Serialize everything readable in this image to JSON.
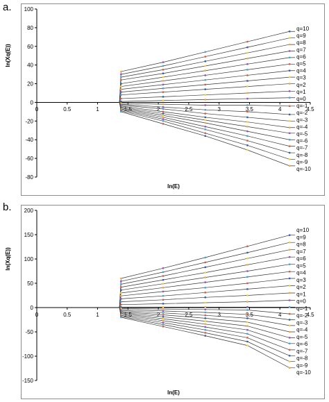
{
  "chart_data": [
    {
      "type": "line",
      "panel_label": "a.",
      "xlabel": "ln(E)",
      "ylabel": "ln(Xq(E))",
      "xlim": [
        0,
        4.5
      ],
      "ylim": [
        -80,
        100
      ],
      "xticks": [
        "0",
        "0.5",
        "1",
        "1.5",
        "2",
        "2.5",
        "3",
        "3.5",
        "4",
        "4.5"
      ],
      "yticks": [
        "100",
        "80",
        "60",
        "40",
        "20",
        "0",
        "-20",
        "-40",
        "-60",
        "-80"
      ],
      "x": [
        1.386,
        2.079,
        2.773,
        3.466,
        4.159
      ],
      "series": [
        {
          "name": "q=10",
          "values": [
            33,
            43,
            54,
            65,
            76
          ]
        },
        {
          "name": "q=9",
          "values": [
            30,
            39,
            49,
            59,
            69
          ]
        },
        {
          "name": "q=8",
          "values": [
            27,
            35,
            44,
            53,
            62
          ]
        },
        {
          "name": "q=7",
          "values": [
            24,
            31,
            39,
            47,
            55
          ]
        },
        {
          "name": "q=6",
          "values": [
            20,
            27,
            34,
            41,
            48
          ]
        },
        {
          "name": "q=5",
          "values": [
            17,
            23,
            29,
            35,
            41
          ]
        },
        {
          "name": "q=4",
          "values": [
            14,
            19,
            24,
            29,
            34
          ]
        },
        {
          "name": "q=3",
          "values": [
            11,
            15,
            19,
            23,
            27
          ]
        },
        {
          "name": "q=2",
          "values": [
            8,
            11,
            14,
            17,
            20
          ]
        },
        {
          "name": "q=1",
          "values": [
            4,
            6,
            8,
            10,
            12
          ]
        },
        {
          "name": "q=0",
          "values": [
            1,
            2,
            3,
            4,
            5
          ]
        },
        {
          "name": "q=-1",
          "values": [
            -1,
            -2,
            -3,
            -3,
            -4
          ]
        },
        {
          "name": "q=-2",
          "values": [
            -2,
            -5,
            -8,
            -10,
            -13
          ]
        },
        {
          "name": "q=-3",
          "values": [
            -3,
            -7,
            -12,
            -16,
            -20
          ]
        },
        {
          "name": "q=-4",
          "values": [
            -4,
            -10,
            -16,
            -21,
            -27
          ]
        },
        {
          "name": "q=-5",
          "values": [
            -5,
            -12,
            -19,
            -26,
            -33
          ]
        },
        {
          "name": "q=-6",
          "values": [
            -6,
            -14,
            -22,
            -31,
            -40
          ]
        },
        {
          "name": "q=-7",
          "values": [
            -7,
            -16,
            -26,
            -36,
            -47
          ]
        },
        {
          "name": "q=-8",
          "values": [
            -8,
            -18,
            -29,
            -41,
            -54
          ]
        },
        {
          "name": "q=-9",
          "values": [
            -9,
            -20,
            -33,
            -46,
            -61
          ]
        },
        {
          "name": "q=-10",
          "values": [
            -10,
            -23,
            -36,
            -51,
            -68
          ]
        }
      ],
      "marker_colors": [
        "#f2a93b",
        "#9b4fc2",
        "#3fa7d6",
        "#e0593b",
        "#2f5fb0",
        "#f2d23b"
      ]
    },
    {
      "type": "line",
      "panel_label": "b.",
      "xlabel": "ln(E)",
      "ylabel": "ln(Xq(E))",
      "xlim": [
        0,
        4.5
      ],
      "ylim": [
        -150,
        200
      ],
      "xticks": [
        "0",
        "0.5",
        "1",
        "1.5",
        "2",
        "2.5",
        "3",
        "3.5",
        "4",
        "4.5"
      ],
      "yticks": [
        "200",
        "150",
        "100",
        "50",
        "0",
        "-50",
        "-100",
        "-150"
      ],
      "x": [
        1.386,
        2.079,
        2.773,
        3.466,
        4.159
      ],
      "series": [
        {
          "name": "q=10",
          "values": [
            60,
            81,
            103,
            126,
            149
          ]
        },
        {
          "name": "q=9",
          "values": [
            54,
            73,
            93,
            113,
            134
          ]
        },
        {
          "name": "q=8",
          "values": [
            48,
            65,
            83,
            101,
            119
          ]
        },
        {
          "name": "q=7",
          "values": [
            42,
            57,
            72,
            88,
            104
          ]
        },
        {
          "name": "q=6",
          "values": [
            36,
            49,
            62,
            75,
            89
          ]
        },
        {
          "name": "q=5",
          "values": [
            30,
            41,
            52,
            63,
            74
          ]
        },
        {
          "name": "q=4",
          "values": [
            24,
            33,
            41,
            50,
            60
          ]
        },
        {
          "name": "q=3",
          "values": [
            18,
            24,
            31,
            38,
            45
          ]
        },
        {
          "name": "q=2",
          "values": [
            12,
            16,
            21,
            25,
            30
          ]
        },
        {
          "name": "q=1",
          "values": [
            6,
            8,
            10,
            12,
            15
          ]
        },
        {
          "name": "q=0",
          "values": [
            1,
            1,
            1,
            1,
            1
          ]
        },
        {
          "name": "q=-1",
          "values": [
            -2,
            -3,
            -4,
            -5,
            -13
          ]
        },
        {
          "name": "q=-2",
          "values": [
            -4,
            -7,
            -10,
            -14,
            -25
          ]
        },
        {
          "name": "q=-3",
          "values": [
            -6,
            -11,
            -16,
            -22,
            -37
          ]
        },
        {
          "name": "q=-4",
          "values": [
            -8,
            -15,
            -22,
            -30,
            -50
          ]
        },
        {
          "name": "q=-5",
          "values": [
            -10,
            -19,
            -28,
            -38,
            -62
          ]
        },
        {
          "name": "q=-6",
          "values": [
            -12,
            -23,
            -34,
            -46,
            -74
          ]
        },
        {
          "name": "q=-7",
          "values": [
            -14,
            -27,
            -40,
            -54,
            -87
          ]
        },
        {
          "name": "q=-8",
          "values": [
            -16,
            -31,
            -46,
            -62,
            -99
          ]
        },
        {
          "name": "q=-9",
          "values": [
            -18,
            -35,
            -52,
            -70,
            -111
          ]
        },
        {
          "name": "q=-10",
          "values": [
            -20,
            -39,
            -58,
            -78,
            -124
          ]
        }
      ],
      "marker_colors": [
        "#f2a93b",
        "#9b4fc2",
        "#3fa7d6",
        "#e0593b",
        "#2f5fb0",
        "#f2d23b"
      ]
    }
  ]
}
